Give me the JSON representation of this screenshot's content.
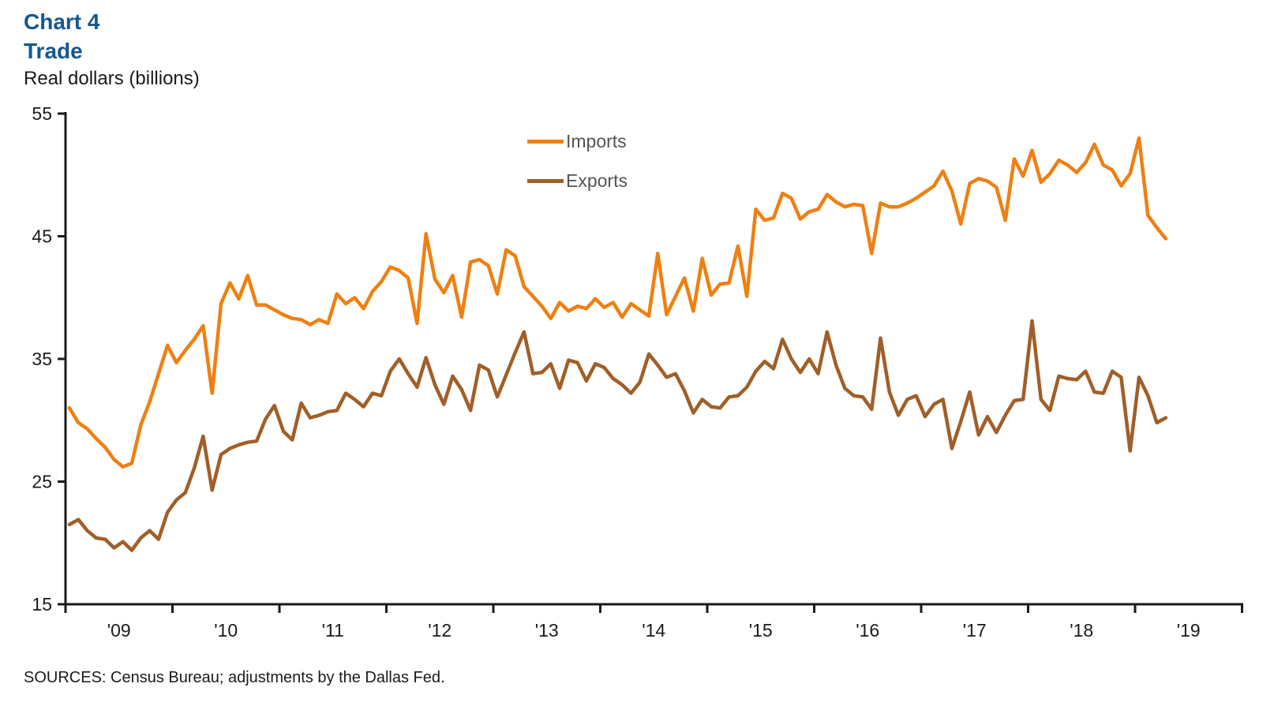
{
  "header": {
    "chart_number": "Chart 4",
    "title": "Trade",
    "unit_label": "Real dollars (billions)"
  },
  "source_note": "SOURCES: Census Bureau; adjustments by the Dallas Fed.",
  "colors": {
    "imports_line": "#EE8012",
    "exports_line": "#A05F28",
    "title_blue": "#14578F",
    "axis": "#1a1a1a",
    "legend_text": "#545454"
  },
  "legend": {
    "items": [
      {
        "label": "Imports",
        "series": "imports"
      },
      {
        "label": "Exports",
        "series": "exports"
      }
    ]
  },
  "chart_data": {
    "type": "line",
    "title": "Trade",
    "ylabel": "Real dollars (billions)",
    "xlabel": "",
    "frequency": "monthly",
    "x_start": "2009-01",
    "x_end": "2019-04",
    "ylim": [
      15,
      55
    ],
    "y_ticks": [
      15,
      25,
      35,
      45,
      55
    ],
    "x_tick_labels": [
      "'09",
      "'10",
      "'11",
      "'12",
      "'13",
      "'14",
      "'15",
      "'16",
      "'17",
      "'18",
      "'19"
    ],
    "grid": false,
    "legend_position": "top-center",
    "series": [
      {
        "name": "Imports",
        "color": "#EE8012",
        "values": [
          31.0,
          29.8,
          29.3,
          28.5,
          27.8,
          26.8,
          26.2,
          26.5,
          29.6,
          31.5,
          33.8,
          36.1,
          34.7,
          35.7,
          36.6,
          37.7,
          32.2,
          39.5,
          41.2,
          39.9,
          41.8,
          39.4,
          39.4,
          39.0,
          38.6,
          38.3,
          38.2,
          37.8,
          38.2,
          37.9,
          40.3,
          39.5,
          40.0,
          39.1,
          40.5,
          41.3,
          42.5,
          42.2,
          41.6,
          37.9,
          45.2,
          41.5,
          40.4,
          41.8,
          38.4,
          42.9,
          43.1,
          42.6,
          40.3,
          43.9,
          43.4,
          40.9,
          40.1,
          39.3,
          38.3,
          39.6,
          38.9,
          39.3,
          39.1,
          39.9,
          39.2,
          39.6,
          38.4,
          39.5,
          39.0,
          38.5,
          43.6,
          38.6,
          40.1,
          41.6,
          38.9,
          43.2,
          40.2,
          41.1,
          41.2,
          44.2,
          40.1,
          47.2,
          46.3,
          46.5,
          48.5,
          48.1,
          46.4,
          47.0,
          47.2,
          48.4,
          47.8,
          47.4,
          47.6,
          47.5,
          43.6,
          47.7,
          47.4,
          47.4,
          47.7,
          48.1,
          48.6,
          49.1,
          50.3,
          48.7,
          46.0,
          49.3,
          49.7,
          49.5,
          49.0,
          46.3,
          51.3,
          49.9,
          52.0,
          49.4,
          50.1,
          51.2,
          50.8,
          50.2,
          51.0,
          52.5,
          50.8,
          50.4,
          49.1,
          50.1,
          53.0,
          46.7,
          45.7,
          44.8
        ]
      },
      {
        "name": "Exports",
        "color": "#A05F28",
        "values": [
          21.5,
          21.9,
          21.0,
          20.4,
          20.3,
          19.6,
          20.1,
          19.4,
          20.4,
          21.0,
          20.3,
          22.5,
          23.5,
          24.1,
          26.1,
          28.7,
          24.3,
          27.2,
          27.7,
          28.0,
          28.2,
          28.3,
          30.1,
          31.2,
          29.1,
          28.4,
          31.4,
          30.2,
          30.4,
          30.7,
          30.8,
          32.2,
          31.7,
          31.1,
          32.2,
          32.0,
          34.0,
          35.0,
          33.8,
          32.7,
          35.1,
          32.9,
          31.3,
          33.6,
          32.5,
          30.8,
          34.5,
          34.1,
          31.9,
          33.7,
          35.5,
          37.2,
          33.8,
          33.9,
          34.6,
          32.6,
          34.9,
          34.7,
          33.2,
          34.6,
          34.3,
          33.4,
          32.9,
          32.2,
          33.1,
          35.4,
          34.5,
          33.5,
          33.8,
          32.4,
          30.6,
          31.7,
          31.1,
          31.0,
          31.9,
          32.0,
          32.7,
          34.0,
          34.8,
          34.2,
          36.6,
          35.0,
          33.9,
          35.0,
          33.8,
          37.2,
          34.5,
          32.6,
          32.0,
          31.9,
          30.9,
          36.7,
          32.3,
          30.4,
          31.7,
          32.0,
          30.3,
          31.3,
          31.7,
          27.7,
          29.9,
          32.3,
          28.8,
          30.3,
          29.0,
          30.4,
          31.6,
          31.7,
          38.1,
          31.7,
          30.8,
          33.6,
          33.4,
          33.3,
          34.0,
          32.3,
          32.2,
          34.0,
          33.5,
          27.5,
          33.5,
          32.0,
          29.8,
          30.2
        ]
      }
    ]
  }
}
